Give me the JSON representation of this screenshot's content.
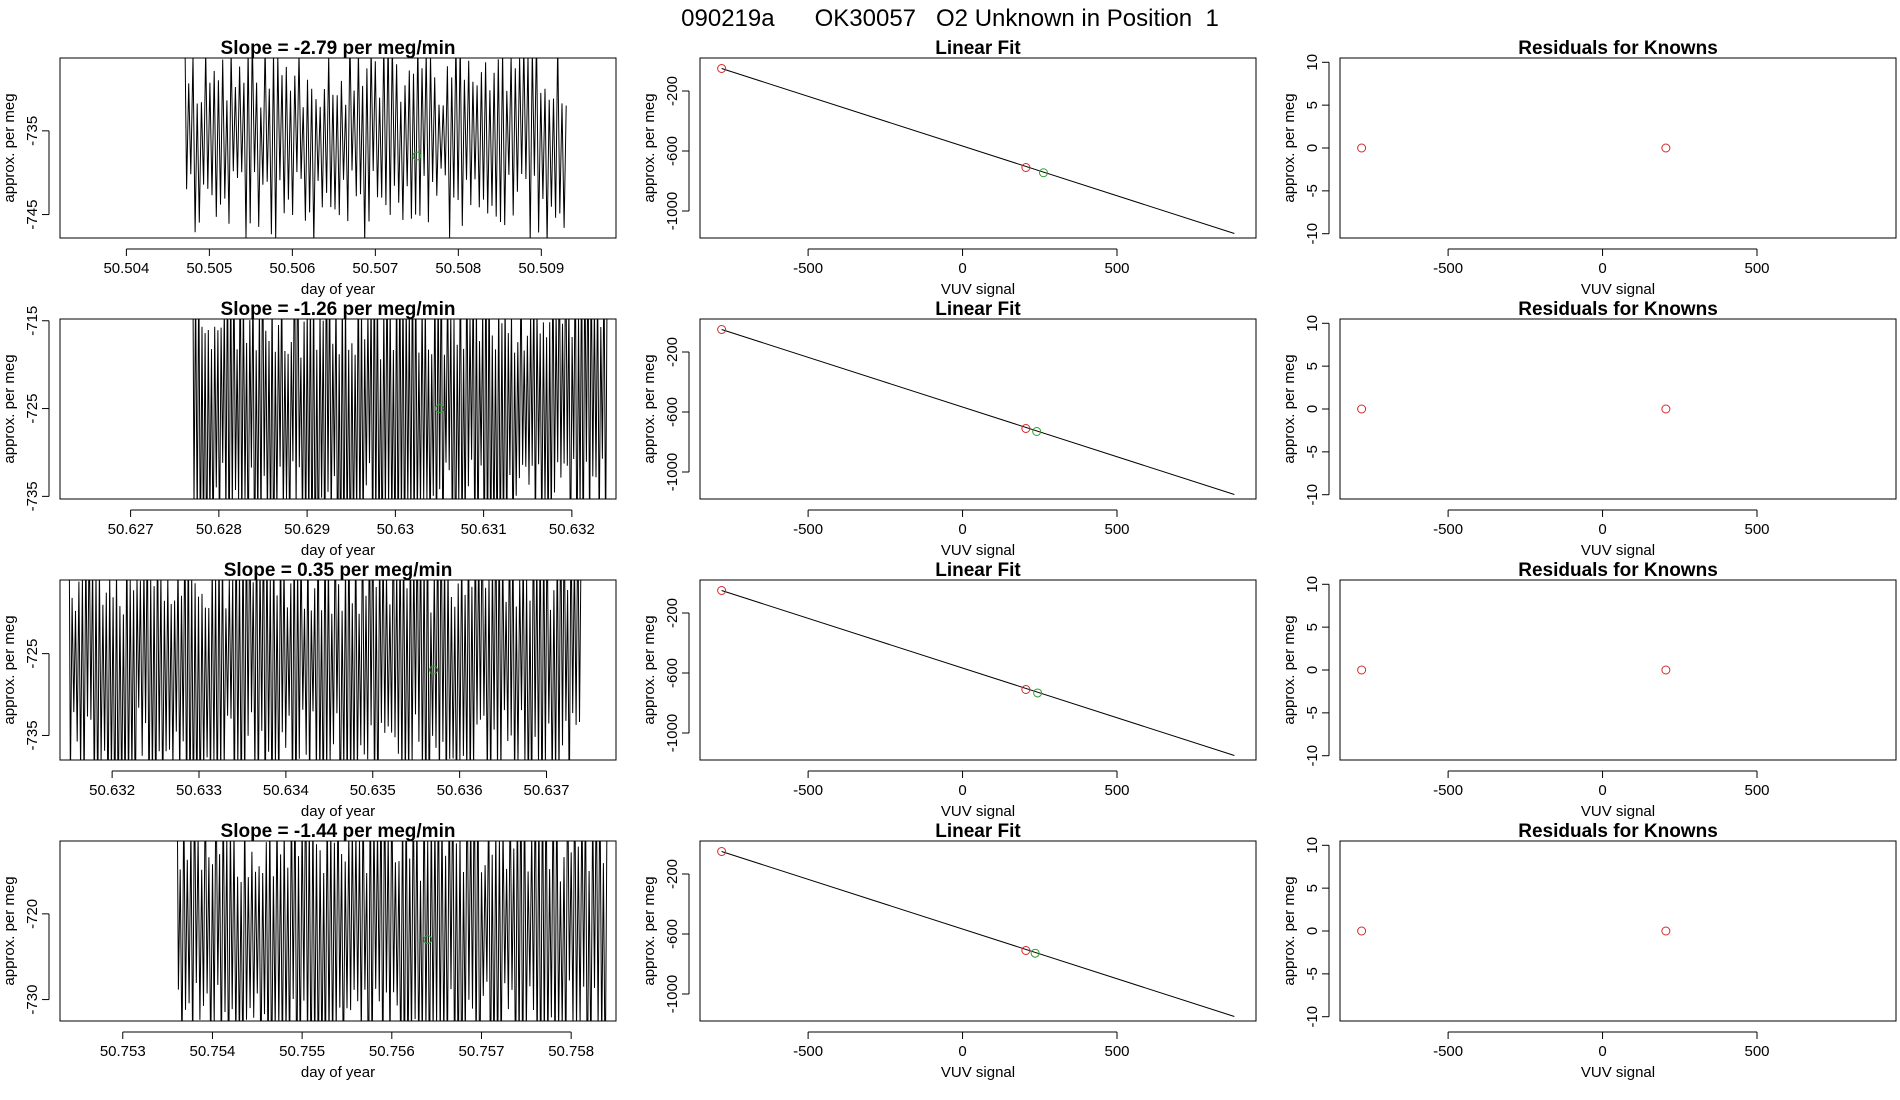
{
  "title": "090219a      OK30057   O2 Unknown in Position  1",
  "colors": {
    "known": "#d62728",
    "unknown": "#2ca02c",
    "line": "#000000"
  },
  "chart_data": [
    {
      "type": "line",
      "title": "Slope =  -2.79  per meg/min",
      "xlabel": "day of year",
      "ylabel": "approx. per meg",
      "xlim": [
        50.5032,
        50.5099
      ],
      "ylim": [
        -747.8,
        -726.3
      ],
      "xticks": [
        50.504,
        50.505,
        50.506,
        50.507,
        50.508,
        50.509
      ],
      "yticks": [
        -735,
        -745
      ],
      "trace_start": 50.5047,
      "trace_end": 50.5093,
      "trace_mean": -736,
      "trace_amp": 10,
      "trace_cycles": 90,
      "trace_seed": 11,
      "unknown_point": {
        "x": 50.5075,
        "y": -738
      }
    },
    {
      "type": "scatter",
      "title": "Linear Fit",
      "xlabel": "VUV signal",
      "ylabel": "approx. per meg",
      "xlim": [
        -850,
        950
      ],
      "ylim": [
        -1180,
        20
      ],
      "xticks": [
        -500,
        0,
        500
      ],
      "yticks": [
        -200,
        -600,
        -1000
      ],
      "fit_line": {
        "x": [
          -780,
          880
        ],
        "y": [
          -50,
          -1150
        ]
      },
      "known_points": [
        {
          "x": -780,
          "y": -50
        },
        {
          "x": 205,
          "y": -710
        }
      ],
      "unknown_point": {
        "x": 262,
        "y": -745
      }
    },
    {
      "type": "scatter",
      "title": "Residuals for Knowns",
      "xlabel": "VUV signal",
      "ylabel": "approx. per meg",
      "xlim": [
        -850,
        950
      ],
      "ylim": [
        -10.5,
        10.5
      ],
      "xticks": [
        -500,
        0,
        500
      ],
      "yticks": [
        10,
        5,
        0,
        -5,
        -10
      ],
      "known_points": [
        {
          "x": -780,
          "y": 0
        },
        {
          "x": 205,
          "y": 0
        }
      ]
    },
    {
      "type": "line",
      "title": "Slope =  -1.26  per meg/min",
      "xlabel": "day of year",
      "ylabel": "approx. per meg",
      "xlim": [
        50.6262,
        50.6325
      ],
      "ylim": [
        -735.3,
        -714.8
      ],
      "xticks": [
        50.627,
        50.628,
        50.629,
        50.63,
        50.631,
        50.632
      ],
      "yticks": [
        -715,
        -725,
        -735
      ],
      "trace_start": 50.6277,
      "trace_end": 50.6324,
      "trace_mean": -725,
      "trace_amp": 16,
      "trace_cycles": 130,
      "trace_seed": 23,
      "unknown_point": {
        "x": 50.6305,
        "y": -725
      }
    },
    {
      "type": "scatter",
      "title": "Linear Fit",
      "xlabel": "VUV signal",
      "ylabel": "approx. per meg",
      "xlim": [
        -850,
        950
      ],
      "ylim": [
        -1180,
        20
      ],
      "xticks": [
        -500,
        0,
        500
      ],
      "yticks": [
        -200,
        -600,
        -1000
      ],
      "fit_line": {
        "x": [
          -780,
          880
        ],
        "y": [
          -50,
          -1150
        ]
      },
      "known_points": [
        {
          "x": -780,
          "y": -50
        },
        {
          "x": 205,
          "y": -710
        }
      ],
      "unknown_point": {
        "x": 240,
        "y": -730
      }
    },
    {
      "type": "scatter",
      "title": "Residuals for Knowns",
      "xlabel": "VUV signal",
      "ylabel": "approx. per meg",
      "xlim": [
        -850,
        950
      ],
      "ylim": [
        -10.5,
        10.5
      ],
      "xticks": [
        -500,
        0,
        500
      ],
      "yticks": [
        10,
        5,
        0,
        -5,
        -10
      ],
      "known_points": [
        {
          "x": -780,
          "y": 0
        },
        {
          "x": 205,
          "y": 0
        }
      ]
    },
    {
      "type": "line",
      "title": "Slope =  0.35  per meg/min",
      "xlabel": "day of year",
      "ylabel": "approx. per meg",
      "xlim": [
        50.6314,
        50.6378
      ],
      "ylim": [
        -738,
        -716
      ],
      "xticks": [
        50.632,
        50.633,
        50.634,
        50.635,
        50.636,
        50.637
      ],
      "yticks": [
        -725,
        -735
      ],
      "trace_start": 50.6315,
      "trace_end": 50.6374,
      "trace_mean": -726,
      "trace_amp": 16,
      "trace_cycles": 150,
      "trace_seed": 37,
      "unknown_point": {
        "x": 50.6357,
        "y": -727
      }
    },
    {
      "type": "scatter",
      "title": "Linear Fit",
      "xlabel": "VUV signal",
      "ylabel": "approx. per meg",
      "xlim": [
        -850,
        950
      ],
      "ylim": [
        -1180,
        20
      ],
      "xticks": [
        -500,
        0,
        500
      ],
      "yticks": [
        -200,
        -600,
        -1000
      ],
      "fit_line": {
        "x": [
          -780,
          880
        ],
        "y": [
          -50,
          -1150
        ]
      },
      "known_points": [
        {
          "x": -780,
          "y": -50
        },
        {
          "x": 205,
          "y": -710
        }
      ],
      "unknown_point": {
        "x": 243,
        "y": -733
      }
    },
    {
      "type": "scatter",
      "title": "Residuals for Knowns",
      "xlabel": "VUV signal",
      "ylabel": "approx. per meg",
      "xlim": [
        -850,
        950
      ],
      "ylim": [
        -10.5,
        10.5
      ],
      "xticks": [
        -500,
        0,
        500
      ],
      "yticks": [
        10,
        5,
        0,
        -5,
        -10
      ],
      "known_points": [
        {
          "x": -780,
          "y": 0
        },
        {
          "x": 205,
          "y": 0
        }
      ]
    },
    {
      "type": "line",
      "title": "Slope =  -1.44  per meg/min",
      "xlabel": "day of year",
      "ylabel": "approx. per meg",
      "xlim": [
        50.7523,
        50.7585
      ],
      "ylim": [
        -732.5,
        -711.5
      ],
      "xticks": [
        50.753,
        50.754,
        50.755,
        50.756,
        50.757,
        50.758
      ],
      "yticks": [
        -720,
        -730
      ],
      "trace_start": 50.7536,
      "trace_end": 50.7584,
      "trace_mean": -722,
      "trace_amp": 16,
      "trace_cycles": 120,
      "trace_seed": 53,
      "unknown_point": {
        "x": 50.7564,
        "y": -723
      }
    },
    {
      "type": "scatter",
      "title": "Linear Fit",
      "xlabel": "VUV signal",
      "ylabel": "approx. per meg",
      "xlim": [
        -850,
        950
      ],
      "ylim": [
        -1180,
        20
      ],
      "xticks": [
        -500,
        0,
        500
      ],
      "yticks": [
        -200,
        -600,
        -1000
      ],
      "fit_line": {
        "x": [
          -780,
          880
        ],
        "y": [
          -50,
          -1150
        ]
      },
      "known_points": [
        {
          "x": -780,
          "y": -50
        },
        {
          "x": 205,
          "y": -710
        }
      ],
      "unknown_point": {
        "x": 235,
        "y": -728
      }
    },
    {
      "type": "scatter",
      "title": "Residuals for Knowns",
      "xlabel": "VUV signal",
      "ylabel": "approx. per meg",
      "xlim": [
        -850,
        950
      ],
      "ylim": [
        -10.5,
        10.5
      ],
      "xticks": [
        -500,
        0,
        500
      ],
      "yticks": [
        10,
        5,
        0,
        -5,
        -10
      ],
      "known_points": [
        {
          "x": -780,
          "y": 0
        },
        {
          "x": 205,
          "y": 0
        }
      ]
    }
  ]
}
